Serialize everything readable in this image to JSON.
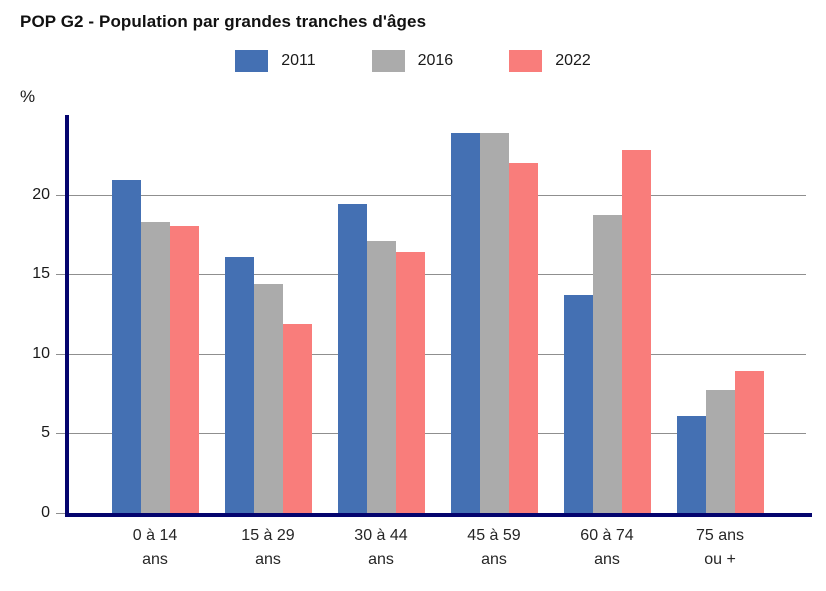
{
  "title": "POP G2 - Population par grandes tranches d'âges",
  "axis": {
    "unit": "%",
    "tick_color": "#8f8f8f",
    "axis_color": "#04046e",
    "gridline_color": "#8f8f8f"
  },
  "chart_data": {
    "type": "bar",
    "title": "POP G2 - Population par grandes tranches d'âges",
    "ylabel": "%",
    "xlabel": "",
    "ylim": [
      0,
      25
    ],
    "yticks": [
      0,
      5,
      10,
      15,
      20
    ],
    "grid": true,
    "legend_position": "top",
    "categories": [
      "0 à 14\nans",
      "15 à 29\nans",
      "30 à 44\nans",
      "45 à 59\nans",
      "60 à 74\nans",
      "75 ans\nou +"
    ],
    "series": [
      {
        "name": "2011",
        "color": "#4470b3",
        "values": [
          20.9,
          16.1,
          19.4,
          23.9,
          13.7,
          6.1
        ]
      },
      {
        "name": "2016",
        "color": "#ababab",
        "values": [
          18.3,
          14.4,
          17.1,
          23.9,
          18.7,
          7.7
        ]
      },
      {
        "name": "2022",
        "color": "#f97d7b",
        "values": [
          18.0,
          11.9,
          16.4,
          22.0,
          22.8,
          8.9
        ]
      }
    ]
  }
}
